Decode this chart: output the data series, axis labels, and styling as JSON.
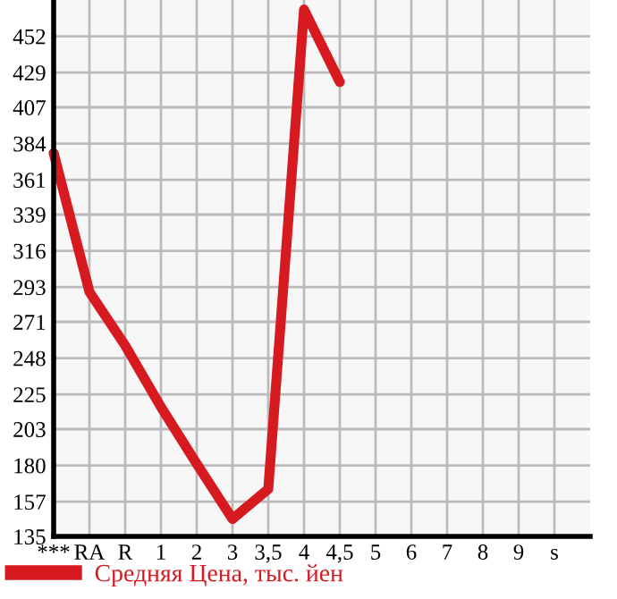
{
  "chart_data": {
    "type": "line",
    "categories": [
      "***",
      "RA",
      "R",
      "1",
      "2",
      "3",
      "3,5",
      "4",
      "4,5",
      "5",
      "6",
      "7",
      "8",
      "9",
      "s"
    ],
    "series": [
      {
        "name": "Средняя Цена, тыс. йен",
        "color": "#d71920",
        "values": [
          378,
          290,
          256,
          217,
          181,
          146,
          165,
          469,
          423,
          null,
          null,
          null,
          null,
          null,
          null
        ]
      }
    ],
    "ylim": [
      135,
      475
    ],
    "yticks": [
      135,
      157,
      180,
      203,
      225,
      248,
      271,
      293,
      316,
      339,
      361,
      384,
      407,
      429,
      452
    ],
    "grid": true,
    "legend": "bottom",
    "marker": "none",
    "line_style": "solid"
  }
}
